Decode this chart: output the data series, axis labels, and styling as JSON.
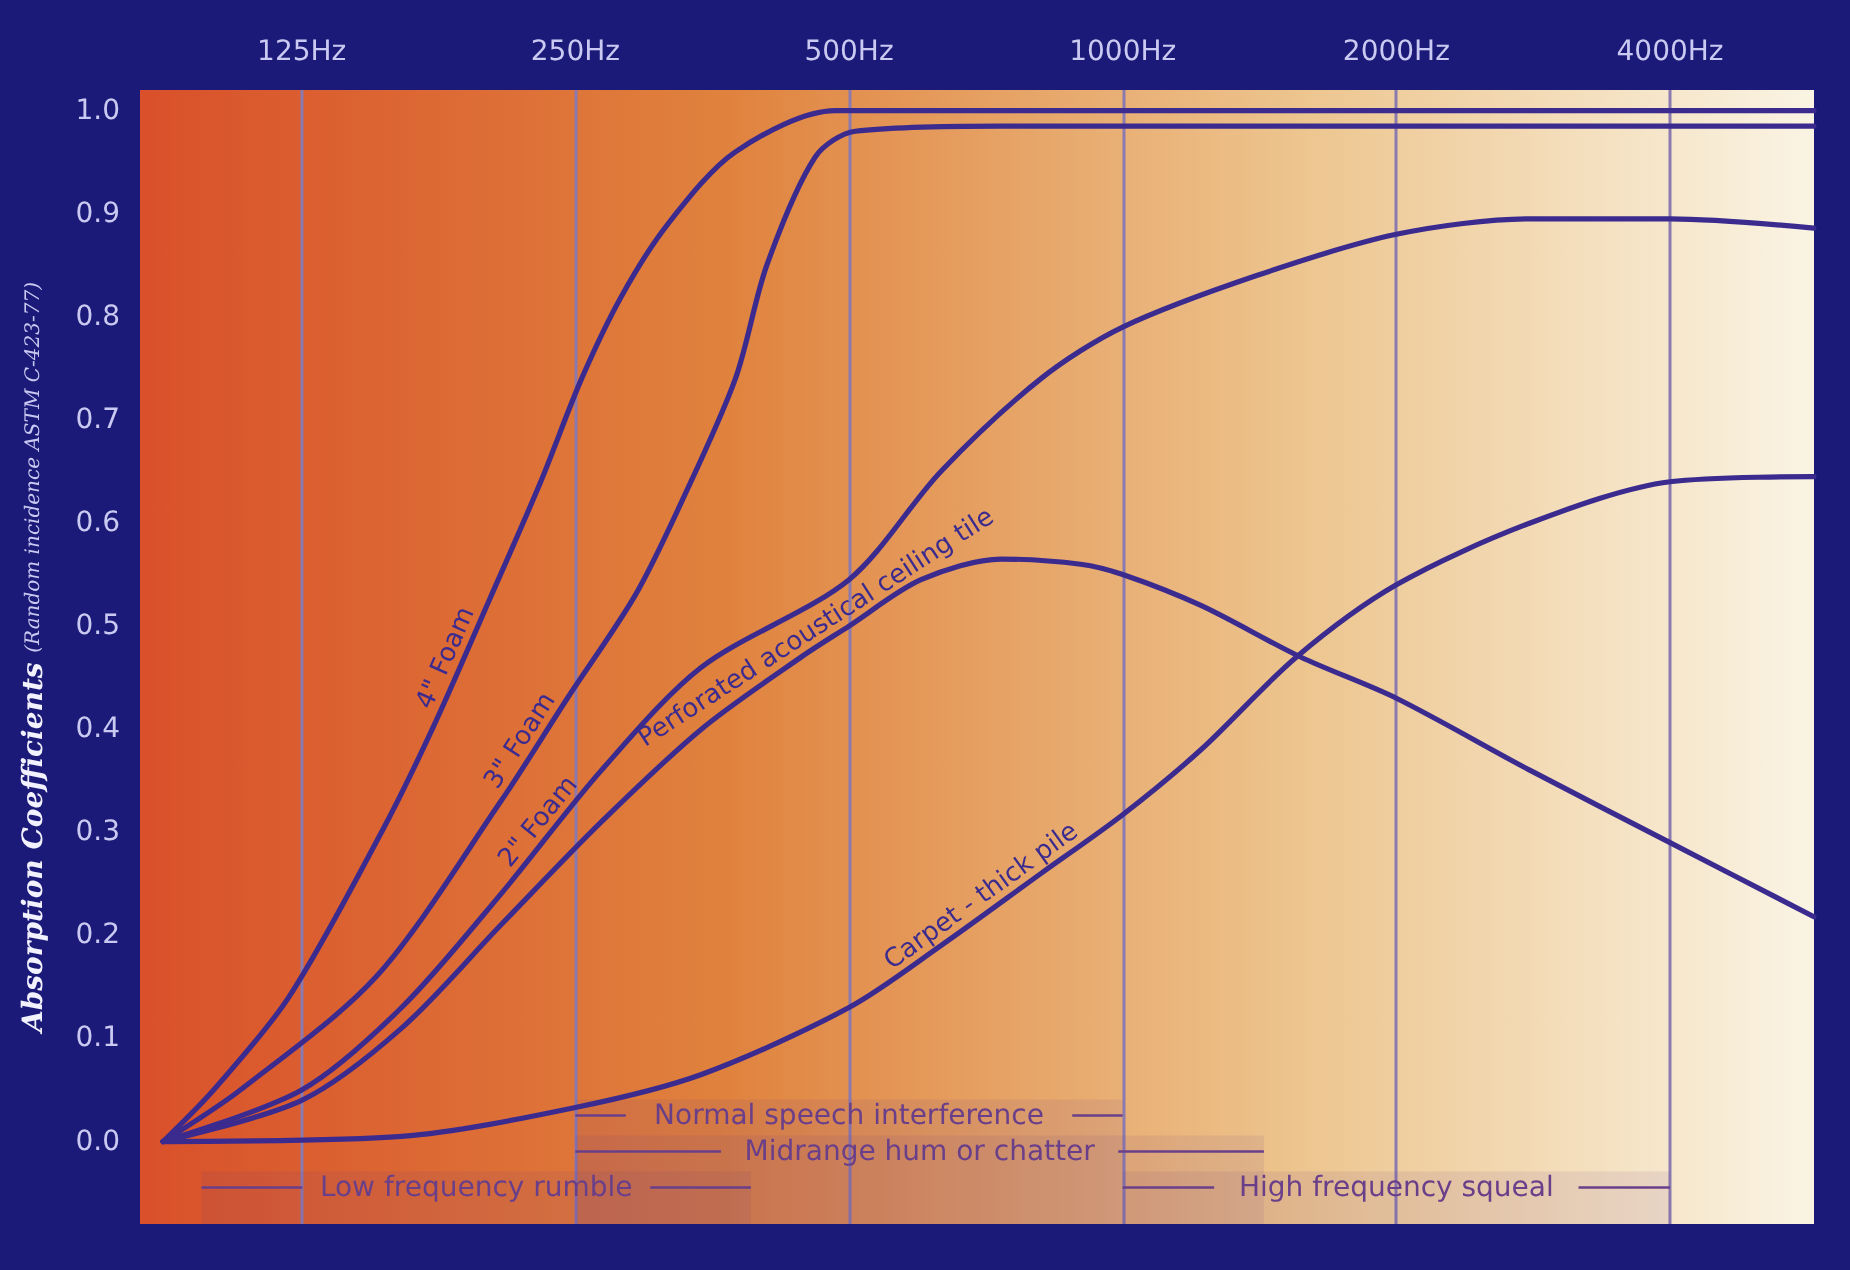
{
  "chart_data": {
    "type": "line",
    "ylabel": "Absorption Coefficients (Random incidence ASTM C-423-77)",
    "xlim": [
      83,
      5760
    ],
    "xticks": [
      {
        "value": 125,
        "label": "125Hz"
      },
      {
        "value": 250,
        "label": "250Hz"
      },
      {
        "value": 500,
        "label": "500Hz"
      },
      {
        "value": 1000,
        "label": "1000Hz"
      },
      {
        "value": 2000,
        "label": "2000Hz"
      },
      {
        "value": 4000,
        "label": "4000Hz"
      }
    ],
    "ylim": [
      -0.08,
      1.02
    ],
    "yticks": [
      {
        "value": 0,
        "label": "0.0"
      },
      {
        "value": 0.1,
        "label": "0.1"
      },
      {
        "value": 0.2,
        "label": "0.2"
      },
      {
        "value": 0.3,
        "label": "0.3"
      },
      {
        "value": 0.4,
        "label": "0.4"
      },
      {
        "value": 0.5,
        "label": "0.5"
      },
      {
        "value": 0.6,
        "label": "0.6"
      },
      {
        "value": 0.7,
        "label": "0.7"
      },
      {
        "value": 0.8,
        "label": "0.8"
      },
      {
        "value": 0.9,
        "label": "0.9"
      },
      {
        "value": 1,
        "label": "1.0"
      }
    ],
    "log": "x",
    "grid": "x",
    "legend": false,
    "marker": "none",
    "line_style": "solid",
    "series": [
      {
        "name": "4\" Foam",
        "color": "#3b2b8f",
        "x": [
          88,
          100,
          121,
          153,
          174,
          201,
          229,
          254,
          281,
          316,
          375,
          483,
          735,
          5759
        ],
        "values": [
          0,
          0.05,
          0.14,
          0.3,
          0.4,
          0.525,
          0.64,
          0.74,
          0.82,
          0.89,
          0.96,
          1.0,
          1.0,
          1.0
        ]
      },
      {
        "name": "3\" Foam",
        "color": "#3b2b8f",
        "x": [
          88,
          107,
          151,
          207,
          245,
          291,
          327,
          375,
          406,
          459,
          508,
          735,
          5759
        ],
        "values": [
          0,
          0.05,
          0.16,
          0.33,
          0.43,
          0.53,
          0.62,
          0.74,
          0.85,
          0.955,
          0.98,
          0.985,
          0.985
        ]
      },
      {
        "name": "2\" Foam",
        "color": "#3b2b8f",
        "x": [
          88,
          125,
          161,
          207,
          267,
          344,
          500,
          631,
          813,
          1000,
          1404,
          2000,
          2807,
          4000,
          5759
        ],
        "values": [
          0,
          0.05,
          0.13,
          0.24,
          0.36,
          0.46,
          0.545,
          0.65,
          0.74,
          0.79,
          0.84,
          0.88,
          0.895,
          0.895,
          0.886
        ]
      },
      {
        "name": "Perforated acoustical ceiling tile",
        "color": "#3b2b8f",
        "x": [
          88,
          125,
          161,
          207,
          267,
          344,
          443,
          500,
          600,
          735,
          899,
          1000,
          1219,
          1569,
          2000,
          2807,
          4000,
          5759
        ],
        "values": [
          0,
          0.04,
          0.11,
          0.21,
          0.31,
          0.4,
          0.47,
          0.5,
          0.545,
          0.565,
          0.56,
          0.55,
          0.52,
          0.47,
          0.43,
          0.36,
          0.29,
          0.218
        ]
      },
      {
        "name": "Carpet - thick pile",
        "color": "#3b2b8f",
        "x": [
          88,
          161,
          250,
          344,
          500,
          631,
          813,
          1000,
          1219,
          1553,
          2000,
          2807,
          4000,
          5759
        ],
        "values": [
          0,
          0.005,
          0.033,
          0.065,
          0.13,
          0.19,
          0.26,
          0.317,
          0.38,
          0.47,
          0.54,
          0.6,
          0.64,
          0.645
        ]
      }
    ],
    "bands": [
      {
        "axis": "x",
        "from": 250,
        "to": 1000,
        "label": "Normal speech interference",
        "color": "#6a3f8a"
      },
      {
        "axis": "x",
        "from": 250,
        "to": 1430,
        "label": "Midrange hum or chatter",
        "color": "#6a3f8a"
      },
      {
        "axis": "x",
        "from": 97,
        "to": 390,
        "label": "Low frequency rumble",
        "color": "#6a3f8a"
      },
      {
        "axis": "x",
        "from": 1000,
        "to": 4000,
        "label": "High frequency squeal",
        "color": "#6a3f8a"
      }
    ]
  }
}
